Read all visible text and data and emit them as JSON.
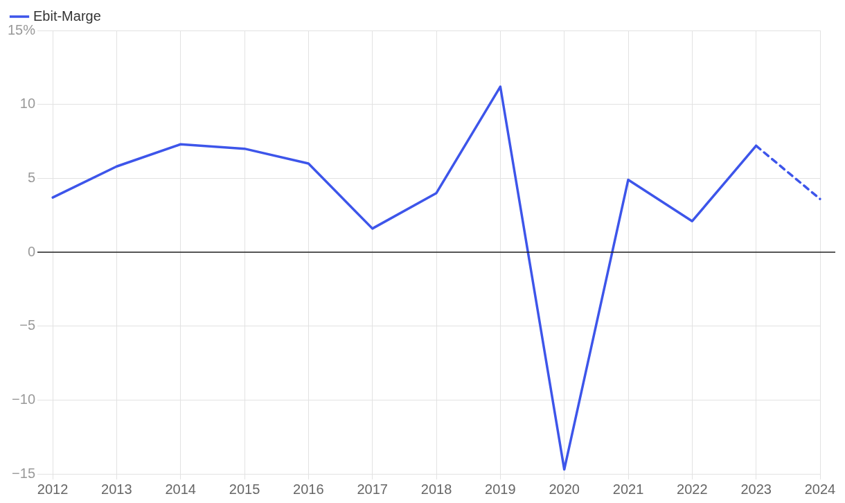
{
  "chart_data": {
    "type": "line",
    "categories": [
      "2012",
      "2013",
      "2014",
      "2015",
      "2016",
      "2017",
      "2018",
      "2019",
      "2020",
      "2021",
      "2022",
      "2023",
      "2024"
    ],
    "series": [
      {
        "name": "Ebit-Marge",
        "color": "#3d55ea",
        "line_style": "solid",
        "values": [
          3.7,
          5.8,
          7.3,
          7.0,
          6.0,
          1.6,
          4.0,
          11.2,
          -14.7,
          4.9,
          2.1,
          7.2,
          null
        ]
      },
      {
        "color": "#3d55ea",
        "line_style": "dashed",
        "values": [
          null,
          null,
          null,
          null,
          null,
          null,
          null,
          null,
          null,
          null,
          null,
          7.2,
          3.6
        ]
      }
    ],
    "ylim": [
      -15,
      15
    ],
    "yticks": [
      {
        "value": -15,
        "label": "−15"
      },
      {
        "value": -10,
        "label": "−10"
      },
      {
        "value": -5,
        "label": "−5"
      },
      0,
      5,
      10,
      {
        "value": 15,
        "label": "15%"
      }
    ],
    "ref_lines": [
      {
        "axis": "y",
        "value": 0,
        "color": "#222222"
      }
    ],
    "grid": true,
    "legend": "top left",
    "marker": "none"
  }
}
